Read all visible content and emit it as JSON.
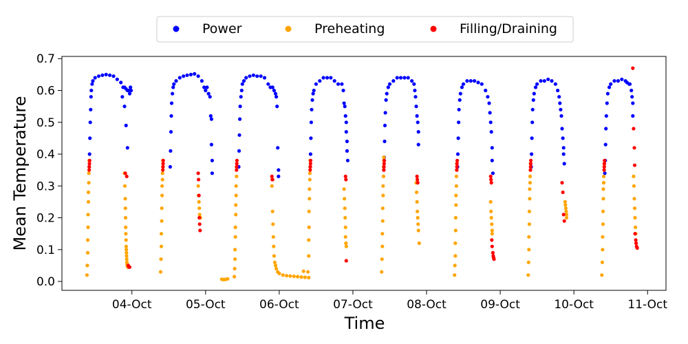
{
  "chart_data": {
    "type": "scatter",
    "title": "",
    "xlabel": "Time",
    "ylabel": "Mean Temperature",
    "xlim": [
      -0.95,
      7.25
    ],
    "ylim": [
      -0.028,
      0.707
    ],
    "x_ticks": [
      {
        "value": 0,
        "label": "04-Oct"
      },
      {
        "value": 1,
        "label": "05-Oct"
      },
      {
        "value": 2,
        "label": "06-Oct"
      },
      {
        "value": 3,
        "label": "07-Oct"
      },
      {
        "value": 4,
        "label": "08-Oct"
      },
      {
        "value": 5,
        "label": "09-Oct"
      },
      {
        "value": 6,
        "label": "10-Oct"
      },
      {
        "value": 7,
        "label": "11-Oct"
      }
    ],
    "y_ticks": [
      {
        "value": 0.0,
        "label": "0.0"
      },
      {
        "value": 0.1,
        "label": "0.1"
      },
      {
        "value": 0.2,
        "label": "0.2"
      },
      {
        "value": 0.3,
        "label": "0.3"
      },
      {
        "value": 0.4,
        "label": "0.4"
      },
      {
        "value": 0.5,
        "label": "0.5"
      },
      {
        "value": 0.6,
        "label": "0.6"
      },
      {
        "value": 0.7,
        "label": "0.7"
      }
    ],
    "legend": {
      "placement": "top-center",
      "entries": [
        {
          "name": "Power",
          "color": "#0000ff"
        },
        {
          "name": "Preheating",
          "color": "#ffa500"
        },
        {
          "name": "Filling/Draining",
          "color": "#ff0000"
        }
      ]
    },
    "series": [
      {
        "name": "Power",
        "color": "#0000ff",
        "x": [
          -0.58,
          -0.575,
          -0.57,
          -0.565,
          -0.56,
          -0.555,
          -0.55,
          -0.54,
          -0.53,
          -0.5,
          -0.45,
          -0.4,
          -0.35,
          -0.3,
          -0.25,
          -0.2,
          -0.15,
          -0.12,
          -0.1,
          -0.08,
          -0.06,
          -0.04,
          -0.03,
          -0.02,
          -0.01,
          -0.13,
          -0.1,
          -0.08,
          -0.06,
          0.52,
          0.525,
          0.53,
          0.535,
          0.54,
          0.55,
          0.56,
          0.57,
          0.6,
          0.65,
          0.7,
          0.75,
          0.8,
          0.85,
          0.9,
          0.95,
          0.98,
          1.0,
          1.02,
          1.04,
          1.06,
          1.07,
          1.08,
          1.08,
          1.09,
          1.09,
          1.45,
          1.455,
          1.46,
          1.465,
          1.47,
          1.48,
          1.49,
          1.5,
          1.52,
          1.55,
          1.6,
          1.65,
          1.7,
          1.75,
          1.8,
          1.85,
          1.88,
          1.91,
          1.93,
          1.95,
          1.96,
          1.97,
          1.98,
          1.99,
          1.99,
          2.42,
          2.425,
          2.43,
          2.435,
          2.44,
          2.45,
          2.46,
          2.47,
          2.5,
          2.55,
          2.6,
          2.65,
          2.7,
          2.75,
          2.8,
          2.85,
          2.87,
          2.88,
          2.89,
          2.9,
          2.91,
          2.91,
          2.92,
          2.92,
          2.93,
          3.42,
          3.425,
          3.43,
          3.435,
          3.44,
          3.45,
          3.46,
          3.48,
          3.5,
          3.55,
          3.6,
          3.65,
          3.7,
          3.75,
          3.8,
          3.83,
          3.84,
          3.85,
          3.86,
          3.87,
          3.88,
          3.89,
          3.89,
          4.42,
          4.425,
          4.43,
          4.435,
          4.44,
          4.45,
          4.46,
          4.48,
          4.5,
          4.55,
          4.6,
          4.65,
          4.7,
          4.75,
          4.8,
          4.83,
          4.85,
          4.86,
          4.87,
          4.88,
          4.89,
          4.89,
          4.9,
          5.42,
          5.425,
          5.43,
          5.435,
          5.44,
          5.45,
          5.46,
          5.48,
          5.5,
          5.55,
          5.6,
          5.65,
          5.7,
          5.75,
          5.78,
          5.8,
          5.81,
          5.82,
          5.83,
          5.84,
          5.85,
          5.86,
          5.86,
          5.87,
          6.42,
          6.425,
          6.43,
          6.435,
          6.44,
          6.45,
          6.46,
          6.48,
          6.5,
          6.55,
          6.6,
          6.65,
          6.7,
          6.72,
          6.75,
          6.76,
          6.78,
          6.79,
          6.8,
          6.8
        ],
        "y": [
          0.36,
          0.4,
          0.45,
          0.5,
          0.54,
          0.58,
          0.6,
          0.62,
          0.63,
          0.64,
          0.645,
          0.648,
          0.65,
          0.648,
          0.645,
          0.635,
          0.625,
          0.61,
          0.61,
          0.605,
          0.6,
          0.6,
          0.59,
          0.61,
          0.6,
          0.58,
          0.55,
          0.49,
          0.42,
          0.36,
          0.41,
          0.47,
          0.52,
          0.56,
          0.59,
          0.61,
          0.62,
          0.63,
          0.64,
          0.645,
          0.648,
          0.65,
          0.652,
          0.645,
          0.63,
          0.61,
          0.6,
          0.61,
          0.59,
          0.58,
          0.52,
          0.51,
          0.43,
          0.38,
          0.34,
          0.36,
          0.41,
          0.46,
          0.51,
          0.55,
          0.58,
          0.6,
          0.62,
          0.63,
          0.64,
          0.645,
          0.648,
          0.645,
          0.645,
          0.64,
          0.62,
          0.61,
          0.61,
          0.6,
          0.59,
          0.58,
          0.55,
          0.42,
          0.35,
          0.33,
          0.36,
          0.4,
          0.45,
          0.5,
          0.54,
          0.57,
          0.59,
          0.6,
          0.62,
          0.63,
          0.64,
          0.64,
          0.64,
          0.63,
          0.62,
          0.62,
          0.6,
          0.56,
          0.55,
          0.52,
          0.5,
          0.47,
          0.44,
          0.41,
          0.38,
          0.35,
          0.39,
          0.44,
          0.49,
          0.53,
          0.57,
          0.59,
          0.61,
          0.62,
          0.63,
          0.64,
          0.64,
          0.64,
          0.64,
          0.63,
          0.62,
          0.6,
          0.58,
          0.55,
          0.52,
          0.5,
          0.47,
          0.43,
          0.36,
          0.4,
          0.45,
          0.5,
          0.54,
          0.57,
          0.59,
          0.61,
          0.62,
          0.63,
          0.63,
          0.63,
          0.625,
          0.62,
          0.6,
          0.58,
          0.56,
          0.53,
          0.5,
          0.47,
          0.42,
          0.38,
          0.34,
          0.36,
          0.4,
          0.45,
          0.5,
          0.54,
          0.57,
          0.59,
          0.61,
          0.62,
          0.63,
          0.63,
          0.635,
          0.63,
          0.62,
          0.6,
          0.58,
          0.56,
          0.54,
          0.52,
          0.48,
          0.45,
          0.42,
          0.4,
          0.37,
          0.34,
          0.38,
          0.43,
          0.48,
          0.52,
          0.56,
          0.59,
          0.61,
          0.62,
          0.63,
          0.63,
          0.635,
          0.63,
          0.625,
          0.62,
          0.62,
          0.6,
          0.58,
          0.56,
          0.52
        ]
      },
      {
        "name": "Preheating",
        "color": "#ffa500",
        "x": [
          -0.61,
          -0.605,
          -0.6,
          -0.6,
          -0.595,
          -0.595,
          -0.59,
          -0.59,
          -0.585,
          -0.585,
          -0.58,
          -0.58,
          -0.1,
          -0.095,
          -0.09,
          -0.088,
          -0.086,
          -0.084,
          -0.082,
          -0.08,
          -0.078,
          -0.076,
          -0.074,
          -0.072,
          -0.07,
          -0.068,
          -0.066,
          -0.064,
          -0.06,
          -0.055,
          -0.05,
          0.39,
          0.395,
          0.4,
          0.4,
          0.405,
          0.405,
          0.41,
          0.41,
          0.415,
          0.415,
          0.42,
          0.42,
          0.9,
          0.905,
          0.91,
          0.915,
          0.92,
          0.93,
          1.22,
          1.24,
          1.26,
          1.28,
          1.3,
          1.39,
          1.395,
          1.4,
          1.4,
          1.405,
          1.405,
          1.41,
          1.41,
          1.415,
          1.415,
          1.42,
          1.42,
          1.9,
          1.91,
          1.915,
          1.92,
          1.925,
          1.93,
          1.94,
          1.95,
          1.96,
          1.98,
          2.0,
          2.05,
          2.1,
          2.15,
          2.2,
          2.25,
          2.3,
          2.33,
          2.35,
          2.4,
          2.39,
          2.4,
          2.4,
          2.405,
          2.405,
          2.41,
          2.41,
          2.415,
          2.415,
          2.42,
          2.42,
          2.88,
          2.885,
          2.89,
          2.895,
          2.9,
          2.9,
          2.905,
          2.91,
          3.39,
          3.395,
          3.4,
          3.4,
          3.405,
          3.405,
          3.41,
          3.41,
          3.415,
          3.415,
          3.42,
          3.42,
          3.86,
          3.865,
          3.87,
          3.875,
          3.88,
          3.885,
          3.89,
          3.9,
          4.38,
          4.385,
          4.39,
          4.39,
          4.395,
          4.395,
          4.4,
          4.4,
          4.405,
          4.405,
          4.41,
          4.41,
          4.87,
          4.875,
          4.88,
          4.885,
          4.89,
          4.89,
          5.38,
          5.385,
          5.39,
          5.39,
          5.395,
          5.395,
          5.4,
          5.4,
          5.405,
          5.405,
          5.41,
          5.41,
          5.88,
          5.885,
          5.89,
          5.895,
          5.9,
          5.9,
          6.38,
          6.385,
          6.39,
          6.39,
          6.395,
          6.395,
          6.4,
          6.4,
          6.405,
          6.405,
          6.41,
          6.41,
          6.81,
          6.815,
          6.82,
          6.825,
          6.83,
          6.835,
          6.84,
          6.845
        ],
        "y": [
          0.02,
          0.05,
          0.09,
          0.13,
          0.17,
          0.21,
          0.25,
          0.28,
          0.31,
          0.34,
          0.36,
          0.38,
          0.34,
          0.3,
          0.26,
          0.23,
          0.2,
          0.17,
          0.15,
          0.13,
          0.11,
          0.1,
          0.09,
          0.08,
          0.07,
          0.06,
          0.055,
          0.05,
          0.05,
          0.045,
          0.045,
          0.03,
          0.07,
          0.11,
          0.15,
          0.19,
          0.23,
          0.27,
          0.3,
          0.32,
          0.34,
          0.36,
          0.38,
          0.3,
          0.27,
          0.25,
          0.23,
          0.21,
          0.2,
          0.007,
          0.006,
          0.006,
          0.007,
          0.008,
          0.015,
          0.04,
          0.07,
          0.1,
          0.14,
          0.17,
          0.21,
          0.24,
          0.27,
          0.3,
          0.33,
          0.36,
          0.3,
          0.22,
          0.18,
          0.14,
          0.11,
          0.08,
          0.06,
          0.05,
          0.04,
          0.03,
          0.025,
          0.02,
          0.018,
          0.017,
          0.016,
          0.015,
          0.014,
          0.032,
          0.013,
          0.012,
          0.03,
          0.08,
          0.13,
          0.17,
          0.22,
          0.26,
          0.29,
          0.32,
          0.34,
          0.36,
          0.38,
          0.29,
          0.26,
          0.23,
          0.2,
          0.17,
          0.14,
          0.12,
          0.11,
          0.03,
          0.07,
          0.11,
          0.15,
          0.19,
          0.23,
          0.27,
          0.3,
          0.33,
          0.36,
          0.38,
          0.39,
          0.31,
          0.28,
          0.25,
          0.22,
          0.2,
          0.18,
          0.16,
          0.12,
          0.02,
          0.05,
          0.08,
          0.12,
          0.16,
          0.2,
          0.24,
          0.27,
          0.3,
          0.33,
          0.35,
          0.37,
          0.25,
          0.22,
          0.2,
          0.18,
          0.16,
          0.15,
          0.02,
          0.06,
          0.1,
          0.14,
          0.18,
          0.22,
          0.26,
          0.29,
          0.31,
          0.33,
          0.35,
          0.37,
          0.25,
          0.24,
          0.23,
          0.22,
          0.21,
          0.2,
          0.02,
          0.06,
          0.1,
          0.14,
          0.18,
          0.22,
          0.26,
          0.29,
          0.31,
          0.33,
          0.35,
          0.37,
          0.33,
          0.3,
          0.26,
          0.23,
          0.2,
          0.17,
          0.15,
          0.12
        ]
      },
      {
        "name": "Filling/Draining",
        "color": "#ff0000",
        "x": [
          -0.58,
          -0.578,
          -0.576,
          -0.574,
          -0.09,
          -0.07,
          -0.05,
          -0.04,
          -0.03,
          0.42,
          0.422,
          0.424,
          0.426,
          0.9,
          0.905,
          0.91,
          0.915,
          0.92,
          0.925,
          1.42,
          1.422,
          1.424,
          1.426,
          1.9,
          1.905,
          1.91,
          2.42,
          2.422,
          2.424,
          2.426,
          2.9,
          2.905,
          2.91,
          3.42,
          3.422,
          3.424,
          3.426,
          3.87,
          3.875,
          3.88,
          4.41,
          4.412,
          4.414,
          4.416,
          4.87,
          4.875,
          4.88,
          4.885,
          4.89,
          4.9,
          4.905,
          4.91,
          4.915,
          5.41,
          5.412,
          5.414,
          5.416,
          5.84,
          5.85,
          5.86,
          5.87,
          6.41,
          6.412,
          6.414,
          6.416,
          6.8,
          6.81,
          6.82,
          6.825,
          6.83,
          6.84,
          6.845,
          6.85,
          6.86
        ],
        "y": [
          0.35,
          0.36,
          0.37,
          0.38,
          0.34,
          0.33,
          0.05,
          0.045,
          0.045,
          0.35,
          0.36,
          0.37,
          0.38,
          0.34,
          0.32,
          0.27,
          0.2,
          0.18,
          0.16,
          0.35,
          0.36,
          0.37,
          0.38,
          0.33,
          0.32,
          0.32,
          0.35,
          0.36,
          0.37,
          0.38,
          0.33,
          0.32,
          0.065,
          0.35,
          0.36,
          0.37,
          0.38,
          0.33,
          0.32,
          0.31,
          0.35,
          0.36,
          0.37,
          0.38,
          0.33,
          0.32,
          0.31,
          0.13,
          0.11,
          0.09,
          0.08,
          0.075,
          0.07,
          0.35,
          0.36,
          0.37,
          0.38,
          0.31,
          0.28,
          0.21,
          0.19,
          0.35,
          0.36,
          0.37,
          0.38,
          0.67,
          0.48,
          0.42,
          0.365,
          0.15,
          0.13,
          0.12,
          0.11,
          0.105
        ]
      }
    ]
  }
}
